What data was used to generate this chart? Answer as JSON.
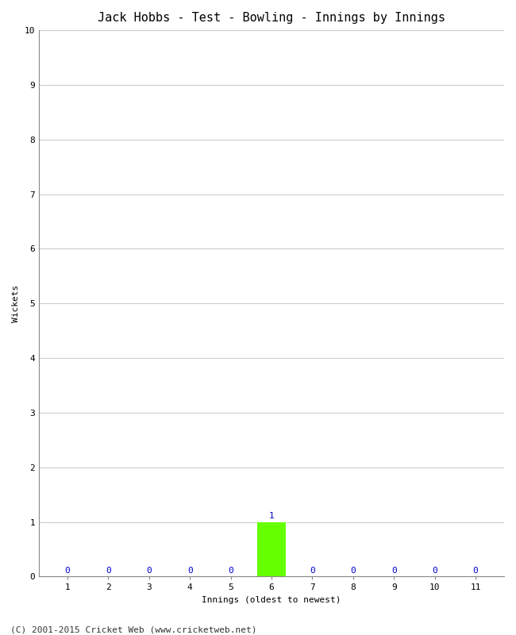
{
  "title": "Jack Hobbs - Test - Bowling - Innings by Innings",
  "xlabel": "Innings (oldest to newest)",
  "ylabel": "Wickets",
  "innings": [
    1,
    2,
    3,
    4,
    5,
    6,
    7,
    8,
    9,
    10,
    11
  ],
  "wickets": [
    0,
    0,
    0,
    0,
    0,
    1,
    0,
    0,
    0,
    0,
    0
  ],
  "bar_color_normal": "#66ff00",
  "label_color": "#0000cc",
  "ylim": [
    0,
    10
  ],
  "yticks": [
    0,
    1,
    2,
    3,
    4,
    5,
    6,
    7,
    8,
    9,
    10
  ],
  "xtick_labels": [
    "1",
    "2",
    "3",
    "4",
    "5",
    "6",
    "7",
    "8",
    "9",
    "10",
    "11"
  ],
  "background_color": "#ffffff",
  "grid_color": "#cccccc",
  "footer": "(C) 2001-2015 Cricket Web (www.cricketweb.net)",
  "title_fontsize": 11,
  "axis_label_fontsize": 8,
  "tick_fontsize": 8,
  "value_label_fontsize": 8,
  "footer_fontsize": 8,
  "bar_width": 0.7,
  "xlim_left": 0.3,
  "xlim_right": 11.7
}
